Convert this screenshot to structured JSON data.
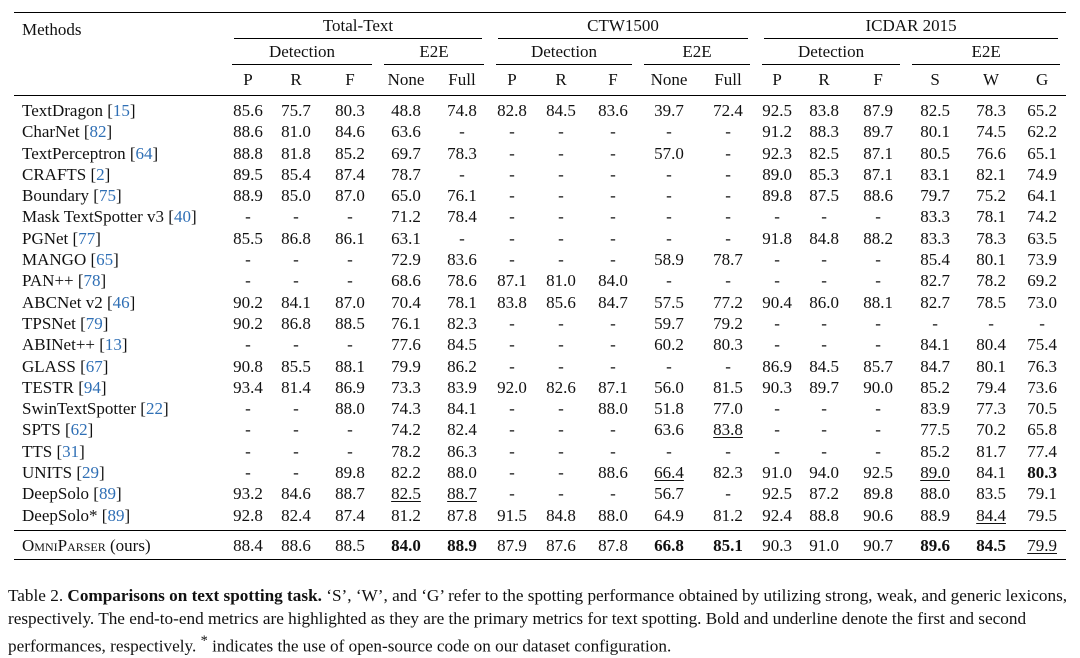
{
  "table": {
    "methods_header": "Methods",
    "datasets": [
      "Total-Text",
      "CTW1500",
      "ICDAR 2015"
    ],
    "detection_label": "Detection",
    "e2e_label": "E2E",
    "columns": [
      "P",
      "R",
      "F",
      "None",
      "Full",
      "P",
      "R",
      "F",
      "None",
      "Full",
      "P",
      "R",
      "F",
      "S",
      "W",
      "G"
    ],
    "rows": [
      {
        "name": "TextDragon",
        "ref": "15",
        "v": [
          "85.6",
          "75.7",
          "80.3",
          "48.8",
          "74.8",
          "82.8",
          "84.5",
          "83.6",
          "39.7",
          "72.4",
          "92.5",
          "83.8",
          "87.9",
          "82.5",
          "78.3",
          "65.2"
        ]
      },
      {
        "name": "CharNet",
        "ref": "82",
        "v": [
          "88.6",
          "81.0",
          "84.6",
          "63.6",
          "-",
          "-",
          "-",
          "-",
          "-",
          "-",
          "91.2",
          "88.3",
          "89.7",
          "80.1",
          "74.5",
          "62.2"
        ]
      },
      {
        "name": "TextPerceptron",
        "ref": "64",
        "v": [
          "88.8",
          "81.8",
          "85.2",
          "69.7",
          "78.3",
          "-",
          "-",
          "-",
          "57.0",
          "-",
          "92.3",
          "82.5",
          "87.1",
          "80.5",
          "76.6",
          "65.1"
        ]
      },
      {
        "name": "CRAFTS",
        "ref": "2",
        "v": [
          "89.5",
          "85.4",
          "87.4",
          "78.7",
          "-",
          "-",
          "-",
          "-",
          "-",
          "-",
          "89.0",
          "85.3",
          "87.1",
          "83.1",
          "82.1",
          "74.9"
        ]
      },
      {
        "name": "Boundary",
        "ref": "75",
        "v": [
          "88.9",
          "85.0",
          "87.0",
          "65.0",
          "76.1",
          "-",
          "-",
          "-",
          "-",
          "-",
          "89.8",
          "87.5",
          "88.6",
          "79.7",
          "75.2",
          "64.1"
        ]
      },
      {
        "name": "Mask TextSpotter v3",
        "ref": "40",
        "v": [
          "-",
          "-",
          "-",
          "71.2",
          "78.4",
          "-",
          "-",
          "-",
          "-",
          "-",
          "-",
          "-",
          "-",
          "83.3",
          "78.1",
          "74.2"
        ]
      },
      {
        "name": "PGNet",
        "ref": "77",
        "v": [
          "85.5",
          "86.8",
          "86.1",
          "63.1",
          "-",
          "-",
          "-",
          "-",
          "-",
          "-",
          "91.8",
          "84.8",
          "88.2",
          "83.3",
          "78.3",
          "63.5"
        ]
      },
      {
        "name": "MANGO",
        "ref": "65",
        "v": [
          "-",
          "-",
          "-",
          "72.9",
          "83.6",
          "-",
          "-",
          "-",
          "58.9",
          "78.7",
          "-",
          "-",
          "-",
          "85.4",
          "80.1",
          "73.9"
        ]
      },
      {
        "name": "PAN++",
        "ref": "78",
        "v": [
          "-",
          "-",
          "-",
          "68.6",
          "78.6",
          "87.1",
          "81.0",
          "84.0",
          "-",
          "-",
          "-",
          "-",
          "-",
          "82.7",
          "78.2",
          "69.2"
        ]
      },
      {
        "name": "ABCNet v2",
        "ref": "46",
        "v": [
          "90.2",
          "84.1",
          "87.0",
          "70.4",
          "78.1",
          "83.8",
          "85.6",
          "84.7",
          "57.5",
          "77.2",
          "90.4",
          "86.0",
          "88.1",
          "82.7",
          "78.5",
          "73.0"
        ]
      },
      {
        "name": "TPSNet",
        "ref": "79",
        "v": [
          "90.2",
          "86.8",
          "88.5",
          "76.1",
          "82.3",
          "-",
          "-",
          "-",
          "59.7",
          "79.2",
          "-",
          "-",
          "-",
          "-",
          "-",
          "-"
        ]
      },
      {
        "name": "ABINet++",
        "ref": "13",
        "v": [
          "-",
          "-",
          "-",
          "77.6",
          "84.5",
          "-",
          "-",
          "-",
          "60.2",
          "80.3",
          "-",
          "-",
          "-",
          "84.1",
          "80.4",
          "75.4"
        ]
      },
      {
        "name": "GLASS",
        "ref": "67",
        "v": [
          "90.8",
          "85.5",
          "88.1",
          "79.9",
          "86.2",
          "-",
          "-",
          "-",
          "-",
          "-",
          "86.9",
          "84.5",
          "85.7",
          "84.7",
          "80.1",
          "76.3"
        ]
      },
      {
        "name": "TESTR",
        "ref": "94",
        "v": [
          "93.4",
          "81.4",
          "86.9",
          "73.3",
          "83.9",
          "92.0",
          "82.6",
          "87.1",
          "56.0",
          "81.5",
          "90.3",
          "89.7",
          "90.0",
          "85.2",
          "79.4",
          "73.6"
        ]
      },
      {
        "name": "SwinTextSpotter",
        "ref": "22",
        "v": [
          "-",
          "-",
          "88.0",
          "74.3",
          "84.1",
          "-",
          "-",
          "88.0",
          "51.8",
          "77.0",
          "-",
          "-",
          "-",
          "83.9",
          "77.3",
          "70.5"
        ]
      },
      {
        "name": "SPTS",
        "ref": "62",
        "v": [
          "-",
          "-",
          "-",
          "74.2",
          "82.4",
          "-",
          "-",
          "-",
          "63.6",
          "83.8",
          "-",
          "-",
          "-",
          "77.5",
          "70.2",
          "65.8"
        ],
        "u": [
          9
        ]
      },
      {
        "name": "TTS",
        "ref": "31",
        "v": [
          "-",
          "-",
          "-",
          "78.2",
          "86.3",
          "-",
          "-",
          "-",
          "-",
          "-",
          "-",
          "-",
          "-",
          "85.2",
          "81.7",
          "77.4"
        ]
      },
      {
        "name": "UNITS",
        "ref": "29",
        "v": [
          "-",
          "-",
          "89.8",
          "82.2",
          "88.0",
          "-",
          "-",
          "88.6",
          "66.4",
          "82.3",
          "91.0",
          "94.0",
          "92.5",
          "89.0",
          "84.1",
          "80.3"
        ],
        "u": [
          8,
          13
        ],
        "b": [
          15
        ]
      },
      {
        "name": "DeepSolo",
        "ref": "89",
        "v": [
          "93.2",
          "84.6",
          "88.7",
          "82.5",
          "88.7",
          "-",
          "-",
          "-",
          "56.7",
          "-",
          "92.5",
          "87.2",
          "89.8",
          "88.0",
          "83.5",
          "79.1"
        ],
        "u": [
          3,
          4
        ]
      },
      {
        "name": "DeepSolo*",
        "ref": "89",
        "v": [
          "92.8",
          "82.4",
          "87.4",
          "81.2",
          "87.8",
          "91.5",
          "84.8",
          "88.0",
          "64.9",
          "81.2",
          "92.4",
          "88.8",
          "90.6",
          "88.9",
          "84.4",
          "79.5"
        ],
        "u": [
          14
        ]
      }
    ],
    "ours": {
      "name_caps": "OmniParser",
      "suffix": " (ours)",
      "v": [
        "88.4",
        "88.6",
        "88.5",
        "84.0",
        "88.9",
        "87.9",
        "87.6",
        "87.8",
        "66.8",
        "85.1",
        "90.3",
        "91.0",
        "90.7",
        "89.6",
        "84.5",
        "79.9"
      ],
      "b": [
        3,
        4,
        8,
        9,
        13,
        14
      ],
      "u": [
        15
      ]
    }
  },
  "caption": {
    "label": "Table 2.",
    "title": "Comparisons on text spotting task.",
    "body1": " ‘S’, ‘W’, and ‘G’ refer to the spotting performance obtained by utilizing strong, weak, and generic lexicons, respectively. The end-to-end metrics are highlighted as they are the primary metrics for text spotting. Bold and underline denote the first and second performances, respectively. ",
    "star": "*",
    "body2": " indicates the use of open-source code on our dataset configuration."
  },
  "colors": {
    "ref_link": "#2f6fb5",
    "text": "#111111"
  }
}
